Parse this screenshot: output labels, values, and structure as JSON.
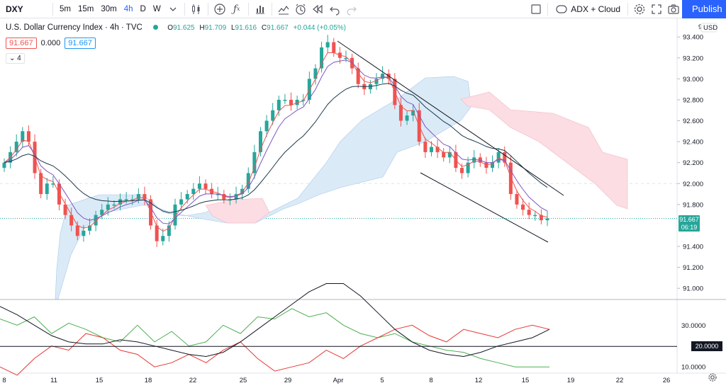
{
  "toolbar": {
    "symbol": "DXY",
    "intervals": [
      "5m",
      "15m",
      "30m",
      "4h",
      "D",
      "W"
    ],
    "active_interval": "4h",
    "indicators_label": "ADX + Cloud",
    "publish_label": "Publish"
  },
  "legend": {
    "title": "U.S. Dollar Currency Index · 4h · TVC",
    "ohlc_o": "O",
    "ohlc_o_val": "91.625",
    "ohlc_h": "H",
    "ohlc_h_val": "91.709",
    "ohlc_l": "L",
    "ohlc_l_val": "91.616",
    "ohlc_c": "C",
    "ohlc_c_val": "91.667",
    "change": "+0.044 (+0.05%)",
    "ind_val1": "91.667",
    "ind_val2": "0.000",
    "ind_val3": "91.667",
    "collapse_count": "4"
  },
  "price_axis": {
    "currency": "USD",
    "top_tick": "9",
    "ticks": [
      "93.400",
      "93.200",
      "93.000",
      "92.800",
      "92.600",
      "92.400",
      "92.200",
      "92.000",
      "91.800",
      "91.400",
      "91.200",
      "91.000"
    ],
    "last_price": "91.667",
    "countdown": "06:19"
  },
  "adx_axis": {
    "ticks": [
      "30.0000",
      "10.0000"
    ],
    "level": "20.0000"
  },
  "time_axis": {
    "labels": [
      "8",
      "11",
      "15",
      "18",
      "22",
      "25",
      "29",
      "Apr",
      "5",
      "8",
      "12",
      "15",
      "19",
      "22",
      "26"
    ]
  },
  "colors": {
    "up": "#26a69a",
    "down": "#ef5350",
    "accent": "#2962ff",
    "ema_fast": "#ef5350",
    "ema_mid": "#7e57c2",
    "ema_slow": "#1b3a4b",
    "cloud_bull": "#dbeaf7",
    "cloud_bear": "#fbdde3",
    "adx": "#131722",
    "di_plus": "#4caf50",
    "di_minus": "#e53935"
  },
  "chart_data": {
    "type": "candlestick",
    "symbol": "DXY",
    "timeframe": "4h",
    "ylim": [
      90.9,
      93.55
    ],
    "close_series": [
      92.2,
      92.3,
      92.4,
      92.5,
      92.4,
      92.1,
      91.9,
      92.0,
      92.0,
      91.8,
      91.7,
      91.6,
      91.5,
      91.55,
      91.6,
      91.7,
      91.75,
      91.8,
      91.8,
      91.85,
      91.85,
      91.85,
      91.9,
      91.85,
      91.6,
      91.45,
      91.5,
      91.6,
      91.8,
      91.85,
      91.9,
      91.95,
      92.0,
      91.95,
      91.9,
      91.9,
      91.85,
      91.85,
      91.9,
      91.95,
      92.1,
      92.3,
      92.5,
      92.6,
      92.7,
      92.8,
      92.8,
      92.75,
      92.8,
      92.8,
      93.0,
      93.1,
      93.3,
      93.35,
      93.25,
      93.2,
      93.2,
      93.1,
      92.95,
      92.9,
      92.95,
      93.0,
      93.05,
      93.0,
      92.75,
      92.6,
      92.65,
      92.7,
      92.4,
      92.3,
      92.35,
      92.3,
      92.25,
      92.3,
      92.15,
      92.1,
      92.2,
      92.25,
      92.2,
      92.15,
      92.2,
      92.3,
      92.2,
      91.9,
      91.8,
      91.75,
      91.7,
      91.7,
      91.65,
      91.667
    ],
    "ichimoku_cloud_bull_top": [
      91.1,
      91.5,
      91.8,
      91.9,
      91.95,
      91.95,
      91.9,
      91.85,
      91.8,
      91.8,
      91.8,
      91.8,
      91.8,
      91.8,
      91.8,
      91.85,
      92.0,
      92.2,
      92.4,
      92.6,
      92.8,
      92.95,
      93.05,
      93.1,
      93.1
    ],
    "adx": [
      39,
      35,
      30,
      25,
      22,
      21,
      21,
      23,
      22,
      20,
      18,
      16,
      15,
      17,
      22,
      28,
      34,
      40,
      46,
      50,
      50,
      44,
      36,
      28,
      22,
      18,
      16,
      15,
      17,
      20,
      22,
      24,
      28
    ],
    "di_plus": [
      33,
      30,
      34,
      26,
      31,
      28,
      24,
      22,
      30,
      22,
      27,
      20,
      22,
      30,
      26,
      34,
      33,
      38,
      34,
      36,
      30,
      26,
      24,
      26,
      22,
      20,
      18,
      17,
      14,
      12,
      10,
      10,
      10
    ],
    "di_minus": [
      10,
      6,
      14,
      20,
      18,
      26,
      24,
      18,
      16,
      10,
      12,
      16,
      12,
      18,
      22,
      14,
      8,
      10,
      12,
      18,
      14,
      20,
      24,
      28,
      30,
      25,
      22,
      28,
      26,
      24,
      28,
      30,
      28
    ],
    "annotations": [
      "descending channel trendlines"
    ]
  }
}
